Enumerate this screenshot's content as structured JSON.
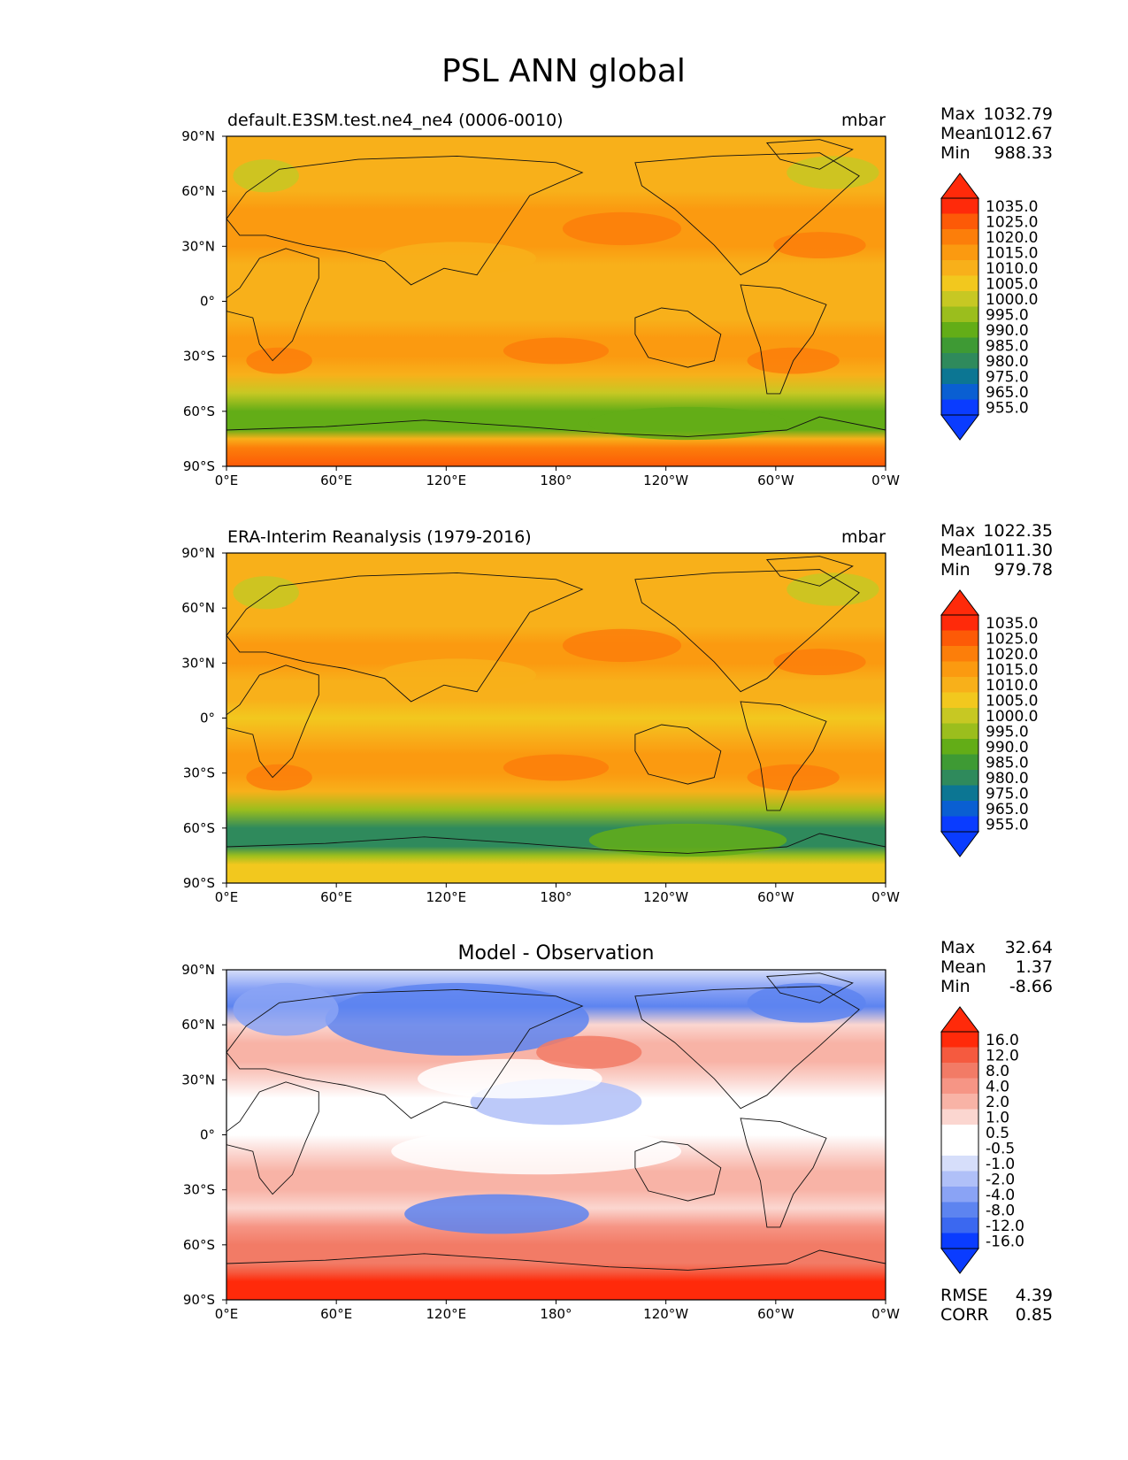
{
  "figure_title": "PSL ANN global",
  "colors": {
    "psl_levels": [
      "#0a3cff",
      "#0a5fd2",
      "#0c7693",
      "#2f8a5c",
      "#3e9a34",
      "#63ad17",
      "#9bbe1d",
      "#c7c823",
      "#f2c81e",
      "#f8b01a",
      "#fb9a10",
      "#fc7e0a",
      "#fd5a07",
      "#ff2a0a"
    ],
    "diff_levels": [
      "#0a3cff",
      "#3b68f0",
      "#5d84f0",
      "#8aa3f5",
      "#b0c0f8",
      "#d6defa",
      "#ffffff",
      "#ffffff",
      "#fbd6d0",
      "#f8b3a6",
      "#f69585",
      "#f27b66",
      "#f55a3f",
      "#ff2a0a"
    ]
  },
  "chart_data": [
    {
      "type": "heatmap",
      "title": "default.E3SM.test.ne4_ne4 (0006-0010)",
      "units": "mbar",
      "stats": {
        "max_label": "Max",
        "max": "1032.79",
        "mean_label": "Mean",
        "mean": "1012.67",
        "min_label": "Min",
        "min": "988.33"
      },
      "x_ticks": [
        "0°E",
        "60°E",
        "120°E",
        "180°",
        "120°W",
        "60°W",
        "0°W"
      ],
      "y_ticks": [
        "90°N",
        "60°N",
        "30°N",
        "0°",
        "30°S",
        "60°S",
        "90°S"
      ],
      "xlim": [
        0,
        360
      ],
      "ylim": [
        -90,
        90
      ],
      "colorbar_levels": [
        "1035.0",
        "1025.0",
        "1020.0",
        "1015.0",
        "1010.0",
        "1005.0",
        "1000.0",
        "995.0",
        "990.0",
        "985.0",
        "980.0",
        "975.0",
        "965.0",
        "955.0"
      ],
      "zonal_profile": {
        "lat": [
          90,
          80,
          70,
          60,
          50,
          40,
          30,
          20,
          10,
          0,
          -10,
          -20,
          -30,
          -40,
          -50,
          -60,
          -70,
          -75,
          -80,
          -90
        ],
        "value": [
          1011,
          1013,
          1012,
          1012,
          1015,
          1017,
          1016,
          1013,
          1011,
          1010,
          1012,
          1016,
          1018,
          1014,
          1004,
          992,
          990,
          1012,
          1024,
          1028
        ]
      }
    },
    {
      "type": "heatmap",
      "title": "ERA-Interim Reanalysis (1979-2016)",
      "units": "mbar",
      "stats": {
        "max_label": "Max",
        "max": "1022.35",
        "mean_label": "Mean",
        "mean": "1011.30",
        "min_label": "Min",
        "min": "979.78"
      },
      "x_ticks": [
        "0°E",
        "60°E",
        "120°E",
        "180°",
        "120°W",
        "60°W",
        "0°W"
      ],
      "y_ticks": [
        "90°N",
        "60°N",
        "30°N",
        "0°",
        "30°S",
        "60°S",
        "90°S"
      ],
      "xlim": [
        0,
        360
      ],
      "ylim": [
        -90,
        90
      ],
      "colorbar_levels": [
        "1035.0",
        "1025.0",
        "1020.0",
        "1015.0",
        "1010.0",
        "1005.0",
        "1000.0",
        "995.0",
        "990.0",
        "985.0",
        "980.0",
        "975.0",
        "965.0",
        "955.0"
      ],
      "zonal_profile": {
        "lat": [
          90,
          80,
          70,
          60,
          50,
          40,
          30,
          20,
          10,
          0,
          -10,
          -20,
          -30,
          -40,
          -50,
          -60,
          -70,
          -75,
          -80,
          -90
        ],
        "value": [
          1012,
          1013,
          1012,
          1011,
          1014,
          1016,
          1015,
          1012,
          1010,
          1009,
          1011,
          1015,
          1017,
          1012,
          998,
          984,
          982,
          995,
          1005,
          1008
        ]
      }
    },
    {
      "type": "heatmap",
      "title": "Model - Observation",
      "units": "",
      "stats": {
        "max_label": "Max",
        "max": "32.64",
        "mean_label": "Mean",
        "mean": "1.37",
        "min_label": "Min",
        "min": "-8.66"
      },
      "extra_stats": {
        "rmse_label": "RMSE",
        "rmse": "4.39",
        "corr_label": "CORR",
        "corr": "0.85"
      },
      "x_ticks": [
        "0°E",
        "60°E",
        "120°E",
        "180°",
        "120°W",
        "60°W",
        "0°W"
      ],
      "y_ticks": [
        "90°N",
        "60°N",
        "30°N",
        "0°",
        "30°S",
        "60°S",
        "90°S"
      ],
      "xlim": [
        0,
        360
      ],
      "ylim": [
        -90,
        90
      ],
      "colorbar_levels": [
        "16.0",
        "12.0",
        "8.0",
        "4.0",
        "2.0",
        "1.0",
        "0.5",
        "-0.5",
        "-1.0",
        "-2.0",
        "-4.0",
        "-8.0",
        "-12.0",
        "-16.0"
      ],
      "zonal_profile": {
        "lat": [
          90,
          80,
          70,
          60,
          50,
          40,
          30,
          20,
          10,
          0,
          -10,
          -20,
          -30,
          -40,
          -50,
          -60,
          -70,
          -75,
          -80,
          -90
        ],
        "value": [
          -1,
          -4,
          -5,
          1,
          3,
          2,
          1.5,
          0.5,
          0,
          0.5,
          1,
          2,
          2,
          1,
          6,
          8,
          10,
          14,
          18,
          20
        ]
      }
    }
  ]
}
